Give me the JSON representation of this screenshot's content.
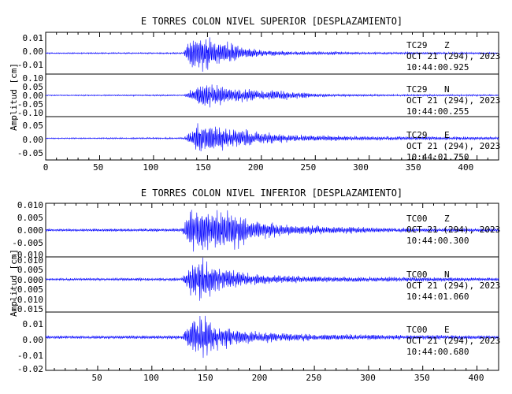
{
  "colors": {
    "trace": "#0000ff",
    "axis": "#000000",
    "background": "#ffffff"
  },
  "chart_data": [
    {
      "type": "line",
      "title": "E TORRES COLON NIVEL SUPERIOR [DESPLAZAMIENTO]",
      "ylabel": "Amplitud [cm]",
      "xlabel": "",
      "xlim": [
        0,
        420
      ],
      "xticks": [
        "0",
        "50",
        "100",
        "150",
        "200",
        "250",
        "300",
        "350",
        "400"
      ],
      "grid": false,
      "panels": [
        {
          "station": "TC29",
          "component": "Z",
          "date": "OCT 21 (294), 2023",
          "time": "10:44:00.925",
          "ylim": [
            -0.015,
            0.015
          ],
          "yticks": [
            "0.01",
            "0.00",
            "-0.01"
          ],
          "envelope": [
            [
              0,
              0.0005
            ],
            [
              128,
              0.0006
            ],
            [
              131,
              0.006
            ],
            [
              138,
              0.013
            ],
            [
              142,
              0.013
            ],
            [
              148,
              0.012
            ],
            [
              155,
              0.01
            ],
            [
              165,
              0.009
            ],
            [
              175,
              0.007
            ],
            [
              185,
              0.004
            ],
            [
              200,
              0.0025
            ],
            [
              230,
              0.0015
            ],
            [
              270,
              0.0012
            ],
            [
              300,
              0.0008
            ],
            [
              330,
              0.0009
            ],
            [
              360,
              0.0008
            ],
            [
              420,
              0.0006
            ]
          ]
        },
        {
          "station": "TC29",
          "component": "N",
          "date": "OCT 21 (294), 2023",
          "time": "10:44:00.255",
          "ylim": [
            -0.11,
            0.11
          ],
          "yticks": [
            "0.10",
            "0.05",
            "0.00",
            "-0.05",
            "-0.10"
          ],
          "envelope": [
            [
              0,
              0.003
            ],
            [
              128,
              0.004
            ],
            [
              135,
              0.03
            ],
            [
              145,
              0.07
            ],
            [
              155,
              0.065
            ],
            [
              165,
              0.05
            ],
            [
              175,
              0.045
            ],
            [
              185,
              0.035
            ],
            [
              200,
              0.025
            ],
            [
              215,
              0.03
            ],
            [
              230,
              0.02
            ],
            [
              250,
              0.01
            ],
            [
              280,
              0.006
            ],
            [
              320,
              0.005
            ],
            [
              360,
              0.005
            ],
            [
              420,
              0.004
            ]
          ]
        },
        {
          "station": "TC29",
          "component": "E",
          "date": "OCT 21 (294), 2023",
          "time": "10:44:01.750",
          "ylim": [
            -0.07,
            0.07
          ],
          "yticks": [
            "0.05",
            "0.00",
            "-0.05"
          ],
          "envelope": [
            [
              0,
              0.002
            ],
            [
              128,
              0.003
            ],
            [
              133,
              0.02
            ],
            [
              140,
              0.05
            ],
            [
              150,
              0.055
            ],
            [
              160,
              0.04
            ],
            [
              170,
              0.035
            ],
            [
              185,
              0.03
            ],
            [
              200,
              0.02
            ],
            [
              220,
              0.015
            ],
            [
              240,
              0.01
            ],
            [
              280,
              0.008
            ],
            [
              320,
              0.007
            ],
            [
              360,
              0.006
            ],
            [
              420,
              0.005
            ]
          ]
        }
      ]
    },
    {
      "type": "line",
      "title": "E TORRES COLON NIVEL INFERIOR [DESPLAZAMIENTO]",
      "ylabel": "Amplitud [cm]",
      "xlabel": "",
      "xlim": [
        2,
        420
      ],
      "xticks": [
        "50",
        "100",
        "150",
        "200",
        "250",
        "300",
        "350",
        "400"
      ],
      "grid": false,
      "panels": [
        {
          "station": "TC00",
          "component": "Z",
          "date": "OCT 21 (294), 2023",
          "time": "10:44:00.300",
          "ylim": [
            -0.011,
            0.011
          ],
          "yticks": [
            "0.010",
            "0.005",
            "0.000",
            "-0.005",
            "-0.010"
          ],
          "envelope": [
            [
              0,
              0.0005
            ],
            [
              128,
              0.0007
            ],
            [
              132,
              0.005
            ],
            [
              138,
              0.01
            ],
            [
              150,
              0.009
            ],
            [
              160,
              0.008
            ],
            [
              175,
              0.009
            ],
            [
              190,
              0.005
            ],
            [
              210,
              0.003
            ],
            [
              240,
              0.002
            ],
            [
              280,
              0.0015
            ],
            [
              320,
              0.001
            ],
            [
              360,
              0.0008
            ],
            [
              420,
              0.0007
            ]
          ]
        },
        {
          "station": "TC00",
          "component": "N",
          "date": "OCT 21 (294), 2023",
          "time": "10:44:01.060",
          "ylim": [
            -0.016,
            0.011
          ],
          "yticks": [
            "0.010",
            "0.005",
            "0.000",
            "-0.005",
            "-0.010",
            "-0.015"
          ],
          "envelope": [
            [
              0,
              0.0006
            ],
            [
              128,
              0.0008
            ],
            [
              133,
              0.006
            ],
            [
              140,
              0.011
            ],
            [
              148,
              0.01
            ],
            [
              158,
              0.007
            ],
            [
              170,
              0.005
            ],
            [
              190,
              0.003
            ],
            [
              220,
              0.002
            ],
            [
              260,
              0.0015
            ],
            [
              300,
              0.0013
            ],
            [
              340,
              0.0012
            ],
            [
              380,
              0.001
            ],
            [
              420,
              0.0008
            ]
          ]
        },
        {
          "station": "TC00",
          "component": "E",
          "date": "OCT 21 (294), 2023",
          "time": "10:44:00.680",
          "ylim": [
            -0.021,
            0.016
          ],
          "yticks": [
            "0.01",
            "0.00",
            "-0.01",
            "-0.02"
          ],
          "envelope": [
            [
              0,
              0.001
            ],
            [
              128,
              0.0012
            ],
            [
              133,
              0.008
            ],
            [
              140,
              0.015
            ],
            [
              148,
              0.014
            ],
            [
              158,
              0.01
            ],
            [
              170,
              0.007
            ],
            [
              190,
              0.004
            ],
            [
              220,
              0.003
            ],
            [
              260,
              0.002
            ],
            [
              300,
              0.0018
            ],
            [
              340,
              0.0015
            ],
            [
              380,
              0.0013
            ],
            [
              420,
              0.0012
            ]
          ]
        }
      ]
    }
  ]
}
